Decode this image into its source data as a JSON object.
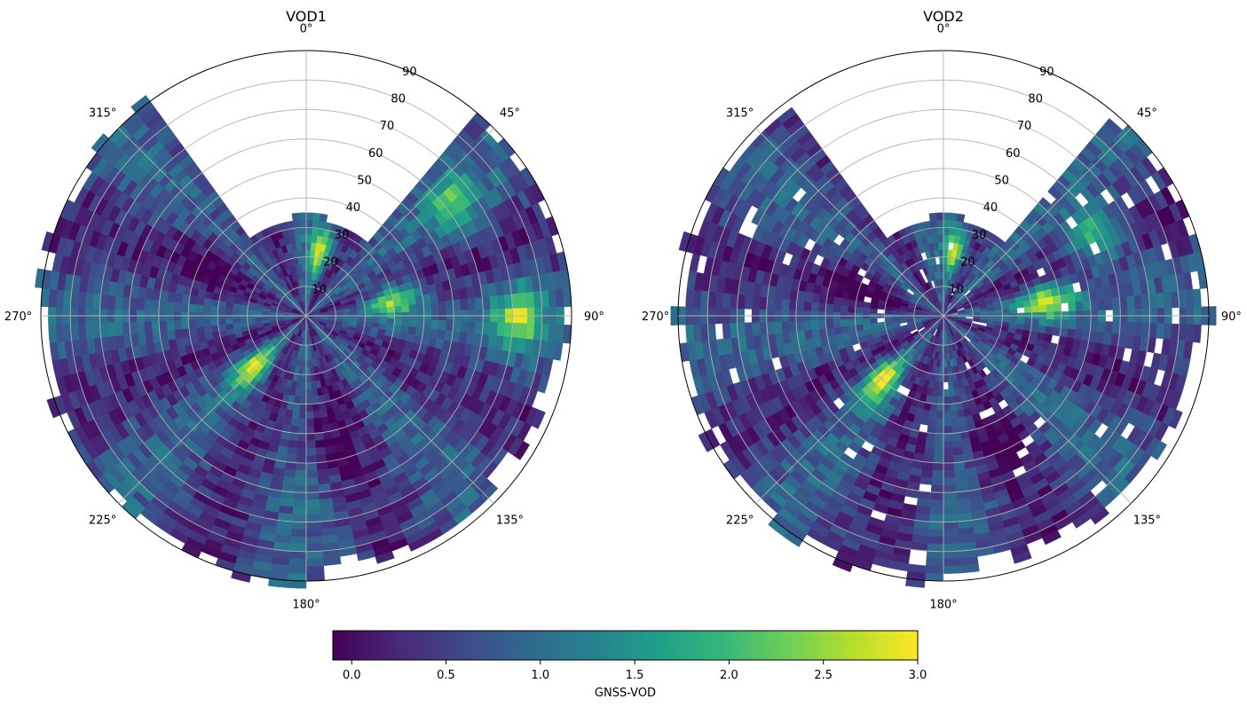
{
  "chart_data": [
    {
      "type": "heatmap",
      "subtype": "polar",
      "title": "VOD1",
      "theta_zero_location": "N",
      "theta_direction": "clockwise",
      "theta_tick_labels": [
        "0°",
        "45°",
        "90°",
        "135°",
        "180°",
        "225°",
        "270°",
        "315°"
      ],
      "r_tick_labels": [
        "10",
        "20",
        "30",
        "40",
        "50",
        "60",
        "70",
        "80",
        "90"
      ],
      "rlim": [
        0,
        90
      ],
      "grid": true,
      "hotspots": [
        {
          "azimuth_deg": 78,
          "radius": 30,
          "value": 2.7
        },
        {
          "azimuth_deg": 223,
          "radius": 25,
          "value": 2.8
        },
        {
          "azimuth_deg": 10,
          "radius": 22,
          "value": 2.6
        },
        {
          "azimuth_deg": 88,
          "radius": 72,
          "value": 2.4
        },
        {
          "azimuth_deg": 50,
          "radius": 62,
          "value": 2.0
        }
      ],
      "lowspots": [
        {
          "azimuth_deg": 300,
          "radius": 35,
          "value": 0.0
        },
        {
          "azimuth_deg": 170,
          "radius": 40,
          "value": 0.1
        }
      ]
    },
    {
      "type": "heatmap",
      "subtype": "polar",
      "title": "VOD2",
      "theta_zero_location": "N",
      "theta_direction": "clockwise",
      "theta_tick_labels": [
        "0°",
        "45°",
        "90°",
        "135°",
        "180°",
        "225°",
        "270°",
        "315°"
      ],
      "r_tick_labels": [
        "10",
        "20",
        "30",
        "40",
        "50",
        "60",
        "70",
        "80",
        "90"
      ],
      "rlim": [
        0,
        90
      ],
      "grid": true,
      "hotspots": [
        {
          "azimuth_deg": 80,
          "radius": 35,
          "value": 2.7
        },
        {
          "azimuth_deg": 222,
          "radius": 30,
          "value": 2.8
        },
        {
          "azimuth_deg": 8,
          "radius": 22,
          "value": 2.6
        },
        {
          "azimuth_deg": 60,
          "radius": 58,
          "value": 2.2
        }
      ],
      "lowspots": [
        {
          "azimuth_deg": 290,
          "radius": 30,
          "value": 0.0
        },
        {
          "azimuth_deg": 160,
          "radius": 45,
          "value": 0.1
        }
      ]
    }
  ],
  "colorbar": {
    "label": "GNSS-VOD",
    "colormap": "viridis",
    "vmin": -0.1,
    "vmax": 3.0,
    "ticks": [
      0.0,
      0.5,
      1.0,
      1.5,
      2.0,
      2.5,
      3.0
    ],
    "tick_labels": [
      "0.0",
      "0.5",
      "1.0",
      "1.5",
      "2.0",
      "2.5",
      "3.0"
    ]
  },
  "colors": {
    "viridis_stops": [
      "#440154",
      "#482878",
      "#3e4989",
      "#31688e",
      "#26828e",
      "#1f9e89",
      "#35b779",
      "#6ece58",
      "#b5de2b",
      "#fde725"
    ],
    "grid": "#b0b0b0"
  }
}
